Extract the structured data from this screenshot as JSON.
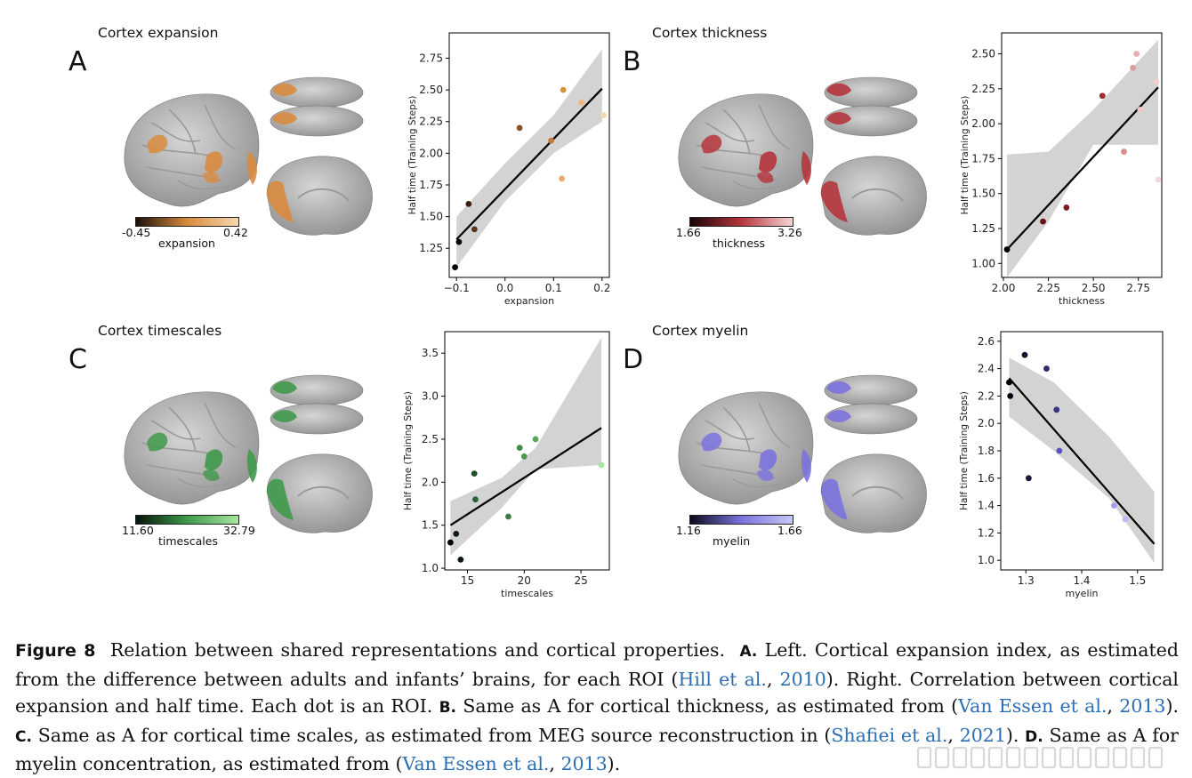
{
  "panels": [
    {
      "letter": "A",
      "title": "Cortex expansion",
      "colorbar": {
        "min": "-0.45",
        "max": "0.42",
        "label": "expansion",
        "low": "#1a0f06",
        "high": "#f6d8b0"
      },
      "accent": "#d98b3e",
      "chart_data": {
        "type": "scatter",
        "xlabel": "expansion",
        "ylabel": "Half time (Training Steps)",
        "xlim": [
          -0.115,
          0.215
        ],
        "ylim": [
          1.02,
          2.95
        ],
        "xticks": [
          -0.1,
          0.0,
          0.1,
          0.2
        ],
        "xtick_labels": [
          "−0.1",
          "0.0",
          "0.1",
          "0.2"
        ],
        "yticks": [
          1.25,
          1.5,
          1.75,
          2.0,
          2.25,
          2.5,
          2.75
        ],
        "ytick_labels": [
          "1.25",
          "1.50",
          "1.75",
          "2.00",
          "2.25",
          "2.50",
          "2.75"
        ],
        "points": [
          {
            "x": -0.103,
            "y": 1.1,
            "color": "#000000"
          },
          {
            "x": -0.095,
            "y": 1.3,
            "color": "#0b0602"
          },
          {
            "x": -0.075,
            "y": 1.6,
            "color": "#3a2110"
          },
          {
            "x": -0.063,
            "y": 1.4,
            "color": "#5a3418"
          },
          {
            "x": 0.03,
            "y": 2.2,
            "color": "#8a5227"
          },
          {
            "x": 0.095,
            "y": 2.1,
            "color": "#c47a3a"
          },
          {
            "x": 0.12,
            "y": 2.5,
            "color": "#d9913f"
          },
          {
            "x": 0.117,
            "y": 1.8,
            "color": "#e8a96a"
          },
          {
            "x": 0.158,
            "y": 2.4,
            "color": "#f0b67a"
          },
          {
            "x": 0.203,
            "y": 2.3,
            "color": "#f6d8b0"
          }
        ],
        "fit": {
          "x": [
            -0.1,
            0.2
          ],
          "y": [
            1.32,
            2.51
          ]
        },
        "band_upper": [
          [
            -0.1,
            1.5
          ],
          [
            0.0,
            1.92
          ],
          [
            0.1,
            2.3
          ],
          [
            0.2,
            2.82
          ]
        ],
        "band_lower": [
          [
            -0.1,
            1.1
          ],
          [
            0.0,
            1.62
          ],
          [
            0.1,
            2.0
          ],
          [
            0.2,
            2.25
          ]
        ]
      }
    },
    {
      "letter": "B",
      "title": "Cortex thickness",
      "colorbar": {
        "min": "1.66",
        "max": "3.26",
        "label": "thickness",
        "low": "#1a0406",
        "high": "#f6d6d6"
      },
      "accent": "#b5353c",
      "chart_data": {
        "type": "scatter",
        "xlabel": "thickness",
        "ylabel": "Half time (Training Steps)",
        "xlim": [
          1.99,
          2.88
        ],
        "ylim": [
          0.9,
          2.65
        ],
        "xticks": [
          2.0,
          2.25,
          2.5,
          2.75
        ],
        "xtick_labels": [
          "2.00",
          "2.25",
          "2.50",
          "2.75"
        ],
        "yticks": [
          1.0,
          1.25,
          1.5,
          1.75,
          2.0,
          2.25,
          2.5
        ],
        "ytick_labels": [
          "1.00",
          "1.25",
          "1.50",
          "1.75",
          "2.00",
          "2.25",
          "2.50"
        ],
        "points": [
          {
            "x": 2.02,
            "y": 1.1,
            "color": "#000000"
          },
          {
            "x": 2.22,
            "y": 1.3,
            "color": "#6a1216"
          },
          {
            "x": 2.35,
            "y": 1.4,
            "color": "#7d1c22"
          },
          {
            "x": 2.55,
            "y": 2.2,
            "color": "#9b2e34"
          },
          {
            "x": 2.67,
            "y": 1.8,
            "color": "#d98b8e"
          },
          {
            "x": 2.72,
            "y": 2.4,
            "color": "#de9a9c"
          },
          {
            "x": 2.74,
            "y": 2.5,
            "color": "#e8b0b2"
          },
          {
            "x": 2.76,
            "y": 2.1,
            "color": "#f0c8c8"
          },
          {
            "x": 2.85,
            "y": 2.3,
            "color": "#f3d0d0"
          },
          {
            "x": 2.86,
            "y": 1.6,
            "color": "#f6d6d6"
          }
        ],
        "fit": {
          "x": [
            2.02,
            2.86
          ],
          "y": [
            1.1,
            2.26
          ]
        },
        "band_upper": [
          [
            2.02,
            1.78
          ],
          [
            2.25,
            1.8
          ],
          [
            2.5,
            2.1
          ],
          [
            2.86,
            2.6
          ]
        ],
        "band_lower": [
          [
            2.02,
            0.9
          ],
          [
            2.25,
            1.3
          ],
          [
            2.5,
            1.85
          ],
          [
            2.86,
            1.85
          ]
        ]
      }
    },
    {
      "letter": "C",
      "title": "Cortex timescales",
      "colorbar": {
        "min": "11.60",
        "max": "32.79",
        "label": "timescales",
        "low": "#06140a",
        "high": "#a6e6a0"
      },
      "accent": "#3f9a4a",
      "chart_data": {
        "type": "scatter",
        "xlabel": "timescales",
        "ylabel": "Half time (Training Steps)",
        "xlim": [
          13.0,
          27.5
        ],
        "ylim": [
          0.98,
          3.75
        ],
        "xticks": [
          15,
          20,
          25
        ],
        "xtick_labels": [
          "15",
          "20",
          "25"
        ],
        "yticks": [
          1.0,
          1.5,
          2.0,
          2.5,
          3.0,
          3.5
        ],
        "ytick_labels": [
          "1.0",
          "1.5",
          "2.0",
          "2.5",
          "3.0",
          "3.5"
        ],
        "points": [
          {
            "x": 13.5,
            "y": 1.3,
            "color": "#000000"
          },
          {
            "x": 14.0,
            "y": 1.4,
            "color": "#0c1e10"
          },
          {
            "x": 14.4,
            "y": 1.1,
            "color": "#0b1a0d"
          },
          {
            "x": 15.6,
            "y": 2.1,
            "color": "#1f4d27"
          },
          {
            "x": 15.7,
            "y": 1.8,
            "color": "#2c6235"
          },
          {
            "x": 18.6,
            "y": 1.6,
            "color": "#3e7a45"
          },
          {
            "x": 19.6,
            "y": 2.4,
            "color": "#3f8c48"
          },
          {
            "x": 20.0,
            "y": 2.3,
            "color": "#4a9a52"
          },
          {
            "x": 21.0,
            "y": 2.5,
            "color": "#55a85c"
          },
          {
            "x": 26.8,
            "y": 2.2,
            "color": "#a6e6a0"
          }
        ],
        "fit": {
          "x": [
            13.5,
            26.8
          ],
          "y": [
            1.5,
            2.63
          ]
        },
        "band_upper": [
          [
            13.5,
            1.78
          ],
          [
            18.0,
            2.05
          ],
          [
            21.0,
            2.4
          ],
          [
            26.8,
            3.68
          ]
        ],
        "band_lower": [
          [
            13.5,
            1.15
          ],
          [
            18.0,
            1.7
          ],
          [
            21.0,
            2.15
          ],
          [
            26.8,
            2.2
          ]
        ]
      }
    },
    {
      "letter": "D",
      "title": "Cortex myelin",
      "colorbar": {
        "min": "1.16",
        "max": "1.66",
        "label": "myelin",
        "low": "#0c0a1e",
        "high": "#c8c6f4"
      },
      "accent": "#7b73de",
      "chart_data": {
        "type": "scatter",
        "xlabel": "myelin",
        "ylabel": "Half time (Training Steps)",
        "xlim": [
          1.255,
          1.545
        ],
        "ylim": [
          0.93,
          2.67
        ],
        "xticks": [
          1.3,
          1.4,
          1.5
        ],
        "xtick_labels": [
          "1.3",
          "1.4",
          "1.5"
        ],
        "yticks": [
          1.0,
          1.2,
          1.4,
          1.6,
          1.8,
          2.0,
          2.2,
          2.4,
          2.6
        ],
        "ytick_labels": [
          "1.0",
          "1.2",
          "1.4",
          "1.6",
          "1.8",
          "2.0",
          "2.2",
          "2.4",
          "2.6"
        ],
        "points": [
          {
            "x": 1.27,
            "y": 2.3,
            "color": "#000000"
          },
          {
            "x": 1.272,
            "y": 2.2,
            "color": "#05040e"
          },
          {
            "x": 1.298,
            "y": 2.5,
            "color": "#14122e"
          },
          {
            "x": 1.305,
            "y": 1.6,
            "color": "#1a1838"
          },
          {
            "x": 1.337,
            "y": 2.4,
            "color": "#2f2b6a"
          },
          {
            "x": 1.355,
            "y": 2.1,
            "color": "#3a3486"
          },
          {
            "x": 1.36,
            "y": 1.8,
            "color": "#5a53b8"
          },
          {
            "x": 1.458,
            "y": 1.4,
            "color": "#a49ff0"
          },
          {
            "x": 1.478,
            "y": 1.3,
            "color": "#bdb9f2"
          }
        ],
        "fit": {
          "x": [
            1.27,
            1.53
          ],
          "y": [
            2.33,
            1.12
          ]
        },
        "band_upper": [
          [
            1.27,
            2.48
          ],
          [
            1.35,
            2.3
          ],
          [
            1.45,
            1.9
          ],
          [
            1.53,
            1.5
          ]
        ],
        "band_lower": [
          [
            1.27,
            2.05
          ],
          [
            1.35,
            1.8
          ],
          [
            1.45,
            1.45
          ],
          [
            1.53,
            0.98
          ]
        ]
      }
    }
  ],
  "caption": {
    "fig_label": "Figure 8",
    "t1": "Relation between shared representations and cortical properties.",
    "a_label": "A.",
    "t2": "Left. Cortical expansion index, as estimated from the difference between adults and infants’ brains, for each ROI (",
    "c1": "Hill et al.",
    "t3": ", ",
    "c1y": "2010",
    "t4": "). Right. Correlation between cortical expansion and half time. Each dot is an ROI.",
    "b_label": "B.",
    "t5": "Same as A for cortical thickness, as estimated from (",
    "c2": "Van Essen et al.",
    "t6": ", ",
    "c2y": "2013",
    "t7": ").",
    "c_label": "C.",
    "t8": "Same as A for cortical time scales, as estimated from MEG source reconstruction in (",
    "c3": "Shafiei et al.",
    "t9": ", ",
    "c3y": "2021",
    "t10": ").",
    "d_label": "D.",
    "t11": "Same as A for myelin concentration, as estimated from (",
    "c4": "Van Essen et al.",
    "t12": ", ",
    "c4y": "2013",
    "t13": ")."
  }
}
